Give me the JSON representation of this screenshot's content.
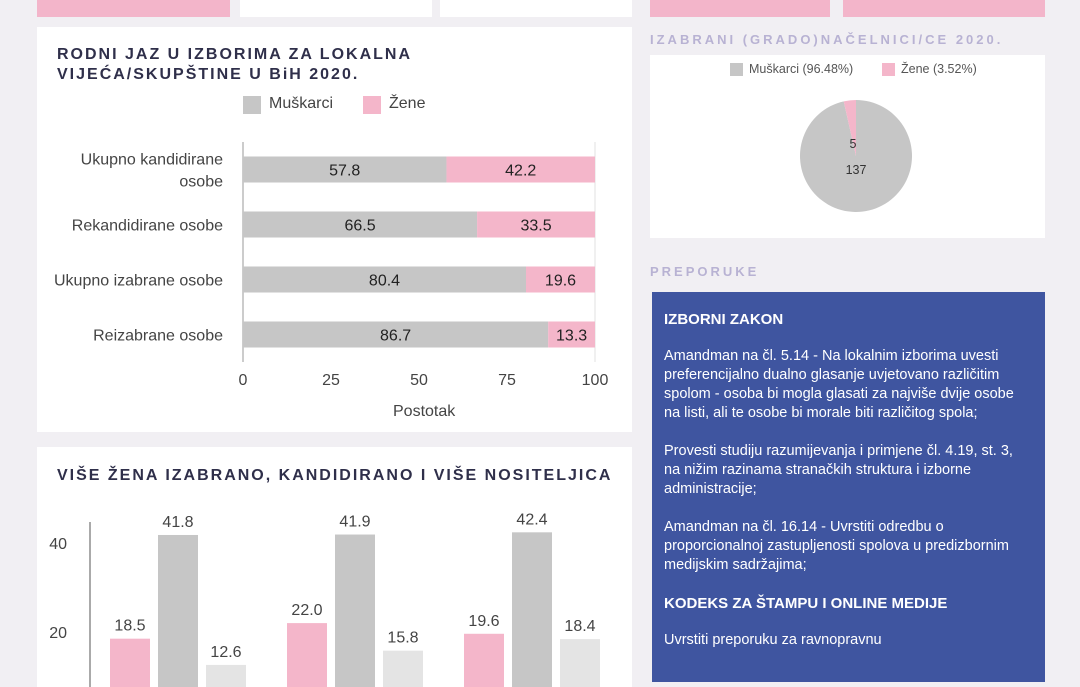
{
  "chart1": {
    "title": "RODNI JAZ U IZBORIMA ZA LOKALNA VIJEĆA/SKUPŠTINE U BiH 2020.",
    "legend": [
      "Muškarci",
      "Žene"
    ],
    "xlabel": "Postotak"
  },
  "chart2": {
    "title": "VIŠE ŽENA IZABRANO, KANDIDIRANO I VIŠE NOSITELJICA"
  },
  "pie": {
    "title": "IZABRANI (GRADO)NAČELNICI/CE 2020.",
    "legend": [
      "Muškarci (96.48%)",
      "Žene (3.52%)"
    ]
  },
  "recommendations": {
    "caption": "PREPORUKE",
    "heading1": "IZBORNI ZAKON",
    "p1": "Amandman na čl. 5.14 - Na lokalnim izborima uvesti preferencijalno dualno glasanje uvjetovano različitim spolom - osoba bi mogla glasati za najviše dvije osobe na listi, ali te osobe bi morale biti različitog spola;",
    "p2": "Provesti studiju razumijevanja i primjene čl. 4.19, st. 3, na nižim razinama stranačkih struktura i izborne administracije;",
    "p3": "Amandman na čl. 16.14 - Uvrstiti odredbu o proporcionalnoj zastupljenosti spolova u predizbornim medijskim sadržajima;",
    "heading2": "KODEKS ZA ŠTAMPU I ONLINE MEDIJE",
    "p4": "Uvrstiti preporuku za ravnopravnu"
  },
  "colors": {
    "male": "#c6c6c6",
    "female": "#f4b6ca",
    "light": "#e4e4e4",
    "recBg": "#3f55a0"
  },
  "chart_data": [
    {
      "type": "bar",
      "orientation": "horizontal",
      "stacked": true,
      "categories": [
        "Ukupno kandidirane osobe",
        "Rekandidirane osobe",
        "Ukupno izabrane osobe",
        "Reizabrane osobe"
      ],
      "series": [
        {
          "name": "Muškarci",
          "values": [
            57.8,
            66.5,
            80.4,
            86.7
          ]
        },
        {
          "name": "Žene",
          "values": [
            42.2,
            33.5,
            19.6,
            13.3
          ]
        }
      ],
      "xlabel": "Postotak",
      "xlim": [
        0,
        100
      ],
      "xticks": [
        0,
        25,
        50,
        75,
        100
      ],
      "legend": "top"
    },
    {
      "type": "bar",
      "groups": 3,
      "series": [
        {
          "values": [
            18.5,
            22.0,
            19.6
          ]
        },
        {
          "values": [
            41.8,
            41.9,
            42.4
          ]
        },
        {
          "values": [
            12.6,
            15.8,
            18.4
          ]
        }
      ],
      "yticks": [
        20,
        40
      ]
    },
    {
      "type": "pie",
      "labels": [
        "Muškarci (96.48%)",
        "Žene (3.52%)"
      ],
      "values": [
        137,
        5
      ],
      "legend": "top"
    }
  ]
}
